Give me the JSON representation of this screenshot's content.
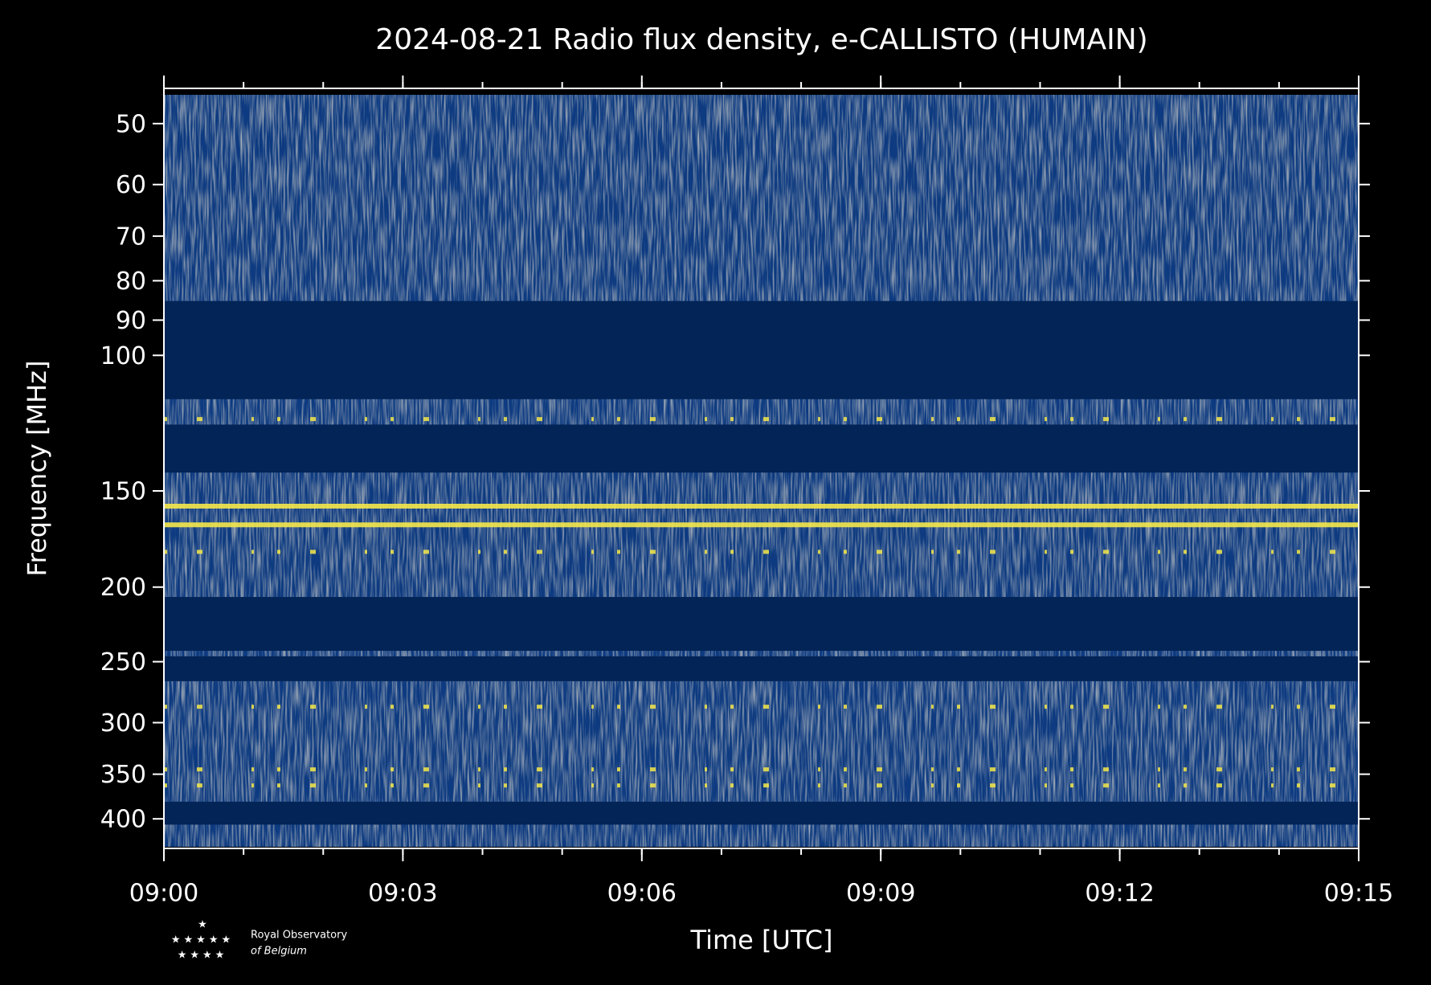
{
  "chart_data": {
    "type": "spectrogram",
    "title": "2024-08-21 Radio flux density, e-CALLISTO (HUMAIN)",
    "xlabel": "Time [UTC]",
    "ylabel": "Frequency [MHz]",
    "xlim": [
      "09:00",
      "09:15"
    ],
    "xticks": [
      "09:00",
      "09:03",
      "09:06",
      "09:09",
      "09:12",
      "09:15"
    ],
    "ylim": [
      437,
      45
    ],
    "yscale": "log",
    "yticks": [
      50,
      60,
      70,
      80,
      90,
      100,
      150,
      200,
      250,
      300,
      350,
      400
    ],
    "masked_bands": [
      [
        85,
        114
      ],
      [
        123,
        142
      ],
      [
        206,
        242
      ],
      [
        246,
        265
      ],
      [
        380,
        407
      ]
    ],
    "rfi_lines": [
      157,
      166
    ],
    "rfi_spots": [
      121,
      180,
      286,
      345,
      362
    ],
    "colors": {
      "background": "#0d3a80",
      "masked": "#022456",
      "rfi": "#f5e84a"
    },
    "logo": {
      "line1": "Royal Observatory",
      "line2": "of Belgium"
    }
  }
}
